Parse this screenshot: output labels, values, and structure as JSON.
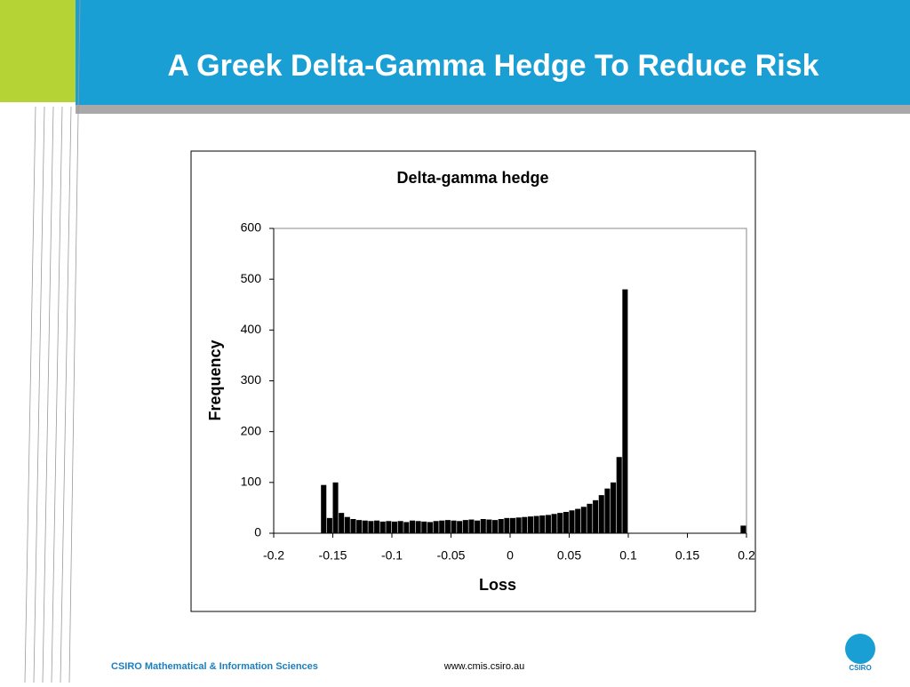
{
  "slide_title": "A Greek Delta-Gamma Hedge To Reduce Risk",
  "footer_left": "CSIRO Mathematical & Information Sciences",
  "footer_center": "www.cmis.csiro.au",
  "logo": "CSIRO",
  "chart_data": {
    "type": "histogram",
    "title": "Delta-gamma hedge",
    "x_label": "Loss",
    "y_label": "Frequency",
    "color": "#000000",
    "bins": [
      -0.2,
      -0.195,
      -0.19,
      -0.185,
      -0.18,
      -0.175,
      -0.17,
      -0.165,
      -0.16,
      -0.155,
      -0.15,
      -0.145,
      -0.14,
      -0.135,
      -0.13,
      -0.125,
      -0.12,
      -0.115,
      -0.11,
      -0.105,
      -0.1,
      -0.095,
      -0.09,
      -0.085,
      -0.08,
      -0.075,
      -0.07,
      -0.065,
      -0.06,
      -0.055,
      -0.05,
      -0.045,
      -0.04,
      -0.035,
      -0.03,
      -0.025,
      -0.02,
      -0.015,
      -0.01,
      -0.005,
      0,
      0.005,
      0.01,
      0.015,
      0.02,
      0.025,
      0.03,
      0.035,
      0.04,
      0.045,
      0.05,
      0.055,
      0.06,
      0.065,
      0.07,
      0.075,
      0.08,
      0.085,
      0.09,
      0.095,
      0.1,
      0.105,
      0.11,
      0.115,
      0.12,
      0.125,
      0.13,
      0.135,
      0.14,
      0.145,
      0.15,
      0.155,
      0.16,
      0.165,
      0.17,
      0.175,
      0.18,
      0.185,
      0.19,
      0.195,
      0.2
    ],
    "counts": [
      0,
      0,
      0,
      0,
      0,
      0,
      0,
      0,
      95,
      30,
      100,
      40,
      32,
      28,
      26,
      25,
      24,
      25,
      23,
      24,
      23,
      24,
      22,
      25,
      24,
      23,
      22,
      24,
      25,
      26,
      25,
      24,
      26,
      27,
      25,
      28,
      27,
      26,
      28,
      30,
      30,
      31,
      32,
      33,
      34,
      35,
      36,
      38,
      40,
      42,
      45,
      48,
      52,
      58,
      65,
      75,
      88,
      100,
      150,
      480,
      0,
      0,
      0,
      0,
      0,
      0,
      0,
      0,
      0,
      0,
      0,
      0,
      0,
      0,
      0,
      0,
      0,
      0,
      0,
      15
    ],
    "xlim": [
      -0.2,
      0.2
    ],
    "xticks": [
      -0.2,
      -0.15,
      -0.1,
      -0.05,
      0,
      0.05,
      0.1,
      0.15,
      0.2
    ],
    "ylim": [
      0,
      600
    ],
    "yticks": [
      0,
      100,
      200,
      300,
      400,
      500,
      600
    ]
  }
}
